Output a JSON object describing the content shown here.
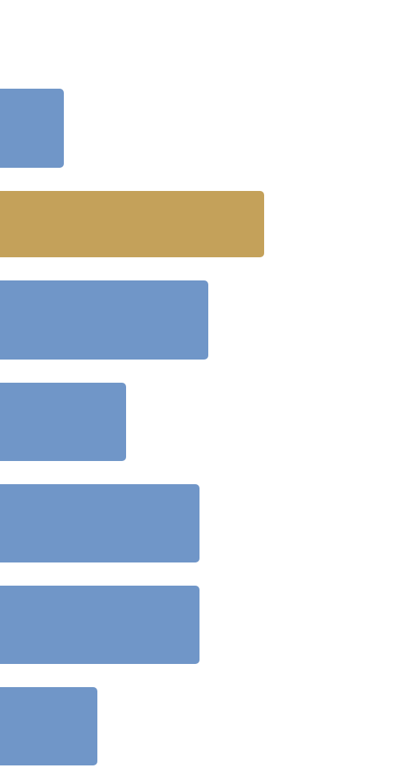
{
  "chart_data": {
    "type": "bar",
    "orientation": "horizontal",
    "values": [
      80,
      331,
      261,
      158,
      250,
      250,
      122
    ],
    "colors": [
      "#7096c8",
      "#c4a15a",
      "#7096c8",
      "#7096c8",
      "#7096c8",
      "#7096c8",
      "#7096c8"
    ],
    "xlim": [
      0,
      500
    ]
  }
}
